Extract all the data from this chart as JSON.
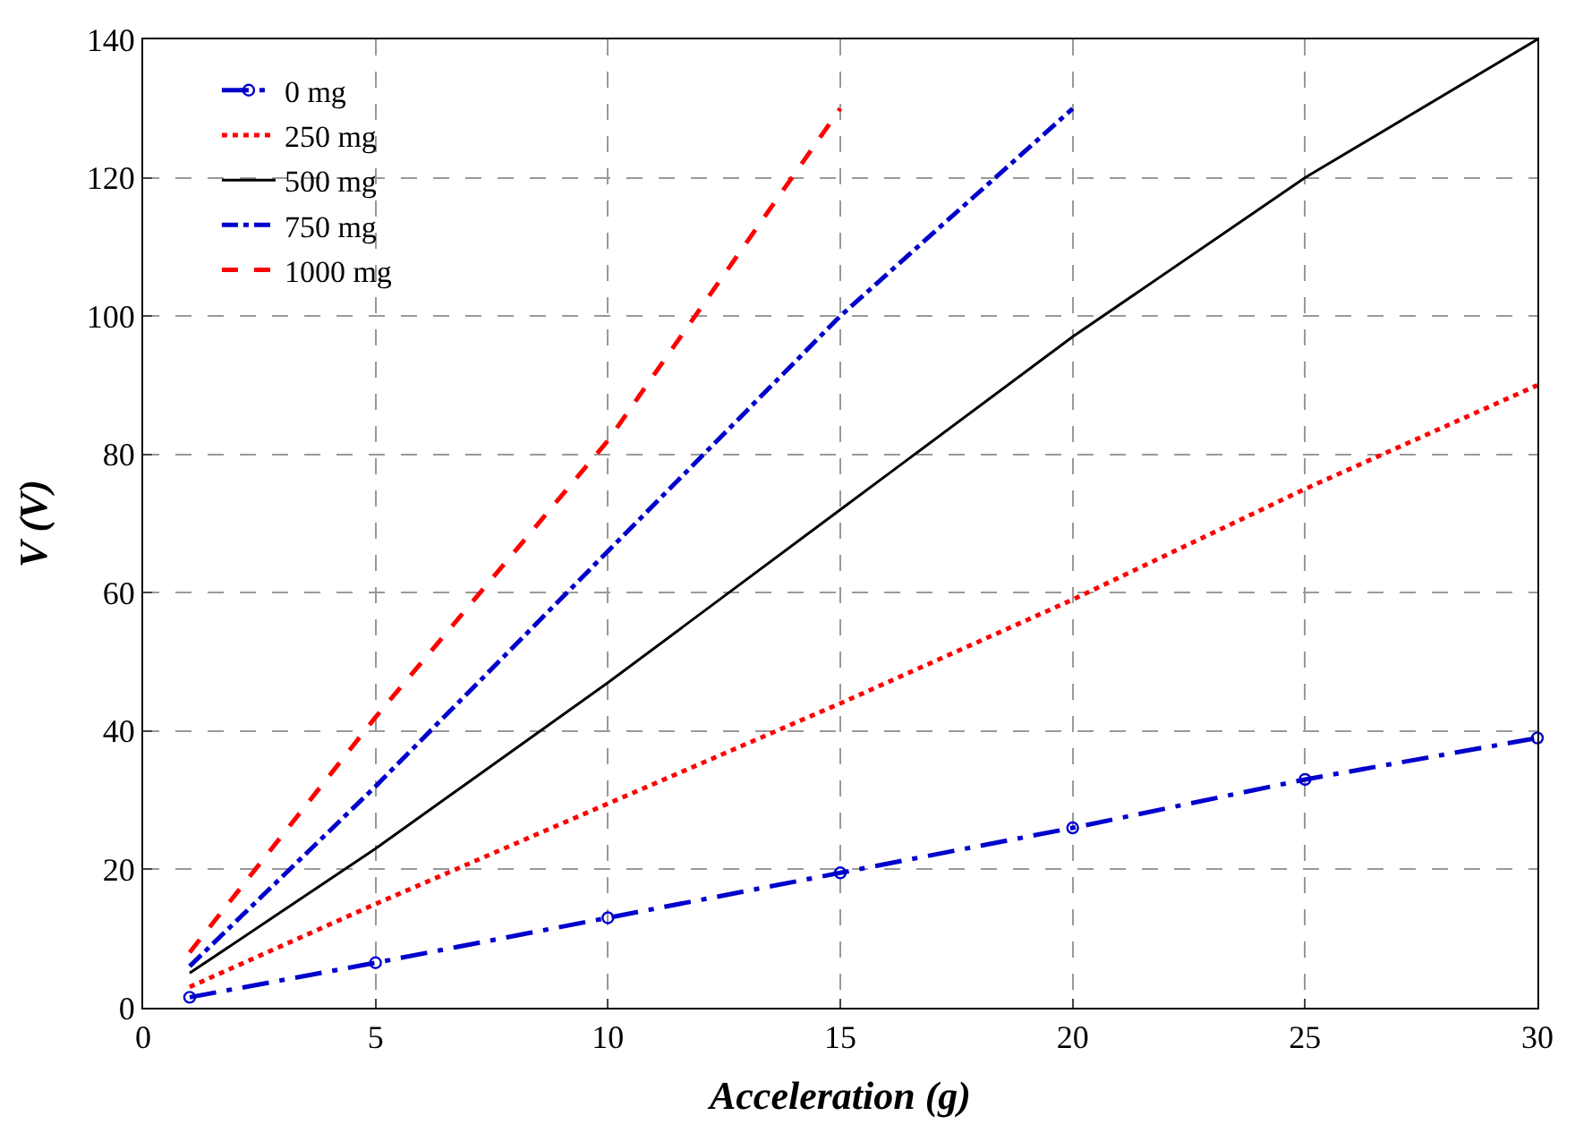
{
  "chart_data": {
    "type": "line",
    "xlabel": "Acceleration (g)",
    "ylabel": "V (V)",
    "xlim": [
      0,
      30
    ],
    "xticks": [
      0,
      5,
      10,
      15,
      20,
      25,
      30
    ],
    "ylim": [
      0,
      140
    ],
    "yticks": [
      0,
      20,
      40,
      60,
      80,
      100,
      120,
      140
    ],
    "grid": true,
    "legend": "top left",
    "series": [
      {
        "name": "0 mg",
        "color": "#0000cc",
        "x": [
          1,
          5,
          10,
          15,
          20,
          25,
          30
        ],
        "values": [
          1.5,
          6.5,
          13,
          19.5,
          26,
          33,
          39
        ],
        "marker": "circle",
        "line_style": "longdashdot"
      },
      {
        "name": "250 mg",
        "color": "#ff0000",
        "x": [
          1,
          5,
          10,
          15,
          20,
          25,
          30
        ],
        "values": [
          3,
          15,
          29.5,
          44,
          59,
          75,
          90
        ],
        "marker": "none",
        "line_style": "dotted"
      },
      {
        "name": "500 mg",
        "color": "#000000",
        "x": [
          1,
          5,
          10,
          15,
          20,
          25,
          30
        ],
        "values": [
          5,
          23,
          47,
          72,
          97,
          120,
          140
        ],
        "marker": "none",
        "line_style": "solid"
      },
      {
        "name": "750 mg",
        "color": "#0000cc",
        "x": [
          1,
          5,
          10,
          15,
          20
        ],
        "values": [
          6,
          32,
          66,
          100,
          130
        ],
        "marker": "none",
        "line_style": "dashdot"
      },
      {
        "name": "1000 mg",
        "color": "#ff0000",
        "x": [
          1,
          5,
          10,
          15
        ],
        "values": [
          8,
          42,
          82,
          130
        ],
        "marker": "none",
        "line_style": "dashed"
      }
    ]
  }
}
